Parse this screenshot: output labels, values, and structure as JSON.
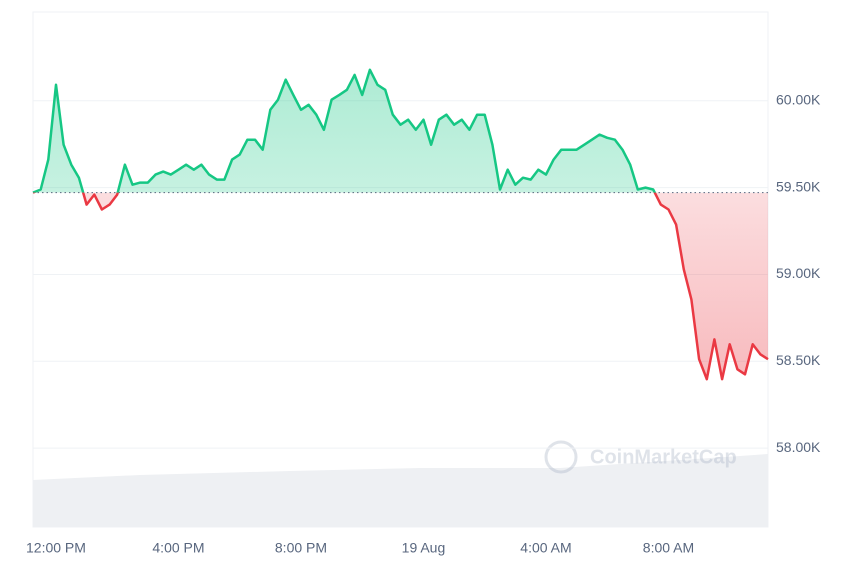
{
  "chart_data": {
    "type": "line",
    "watermark": "CoinMarketCap",
    "categories": [
      null,
      null,
      null,
      "12:00 PM",
      null,
      null,
      null,
      null,
      null,
      null,
      null,
      null,
      null,
      null,
      null,
      null,
      null,
      null,
      null,
      "4:00 PM",
      null,
      null,
      null,
      null,
      null,
      null,
      null,
      null,
      null,
      null,
      null,
      null,
      null,
      null,
      null,
      "8:00 PM",
      null,
      null,
      null,
      null,
      null,
      null,
      null,
      null,
      null,
      null,
      null,
      null,
      null,
      null,
      null,
      "19 Aug",
      null,
      null,
      null,
      null,
      null,
      null,
      null,
      null,
      null,
      null,
      null,
      null,
      null,
      null,
      null,
      "4:00 AM",
      null,
      null,
      null,
      null,
      null,
      null,
      null,
      null,
      null,
      null,
      null,
      null,
      null,
      null,
      null,
      "8:00 AM",
      null,
      null,
      null,
      null,
      null,
      null,
      null,
      null,
      null,
      null,
      null,
      null,
      null
    ],
    "values": [
      59471,
      59489,
      59661,
      60092,
      59747,
      59632,
      59557,
      59402,
      59460,
      59374,
      59402,
      59460,
      59632,
      59517,
      59529,
      59529,
      59575,
      59592,
      59575,
      59603,
      59632,
      59603,
      59632,
      59575,
      59546,
      59546,
      59661,
      59690,
      59776,
      59776,
      59718,
      59948,
      60006,
      60121,
      60034,
      59948,
      59977,
      59920,
      59833,
      60006,
      60034,
      60063,
      60149,
      60034,
      60178,
      60092,
      60063,
      59920,
      59862,
      59891,
      59833,
      59891,
      59747,
      59891,
      59920,
      59862,
      59891,
      59833,
      59920,
      59920,
      59747,
      59489,
      59603,
      59517,
      59557,
      59546,
      59603,
      59575,
      59661,
      59718,
      59718,
      59718,
      59747,
      59776,
      59805,
      59787,
      59776,
      59718,
      59632,
      59489,
      59500,
      59489,
      59402,
      59374,
      59287,
      59029,
      58856,
      58512,
      58397,
      58626,
      58397,
      58598,
      58454,
      58425,
      58598,
      58540,
      58512
    ],
    "reference_line": 59471,
    "up_color": "#16c784",
    "down_color": "#ea3943",
    "ylim": [
      57546,
      60511
    ],
    "yticks": [
      {
        "value": 58000,
        "label": "58.00K"
      },
      {
        "value": 58500,
        "label": "58.50K"
      },
      {
        "value": 59000,
        "label": "59.00K"
      },
      {
        "value": 59500,
        "label": "59.50K"
      },
      {
        "value": 60000,
        "label": "60.00K"
      }
    ],
    "grid": true
  }
}
